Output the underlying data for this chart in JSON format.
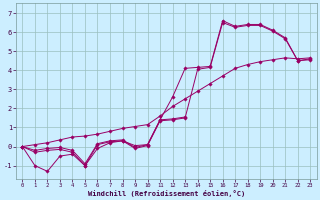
{
  "xlabel": "Windchill (Refroidissement éolien,°C)",
  "bg_color": "#cceeff",
  "grid_color": "#9bbfbf",
  "line_color": "#990066",
  "series": [
    [
      0.0,
      -1.0,
      -1.3,
      -0.5,
      -0.4,
      -1.0,
      -0.1,
      0.2,
      0.3,
      0.05,
      0.1,
      1.4,
      2.6,
      4.1,
      4.15,
      4.2,
      6.6,
      6.3,
      6.4,
      6.4,
      6.1,
      5.7,
      4.5,
      4.6
    ],
    [
      0.0,
      -0.3,
      -0.2,
      -0.15,
      -0.3,
      -1.0,
      0.1,
      0.25,
      0.3,
      -0.1,
      0.05,
      1.35,
      1.4,
      1.5,
      4.05,
      4.15,
      6.5,
      6.25,
      6.35,
      6.35,
      6.05,
      5.65,
      4.5,
      4.55
    ],
    [
      0.0,
      -0.2,
      -0.1,
      -0.05,
      -0.2,
      -0.9,
      0.15,
      0.3,
      0.35,
      -0.05,
      0.1,
      1.4,
      1.45,
      1.55,
      null,
      null,
      null,
      null,
      null,
      null,
      null,
      null,
      null,
      null
    ],
    [
      0.0,
      0.1,
      0.2,
      0.35,
      0.5,
      0.55,
      0.65,
      0.8,
      0.95,
      1.05,
      1.15,
      1.6,
      2.1,
      2.5,
      2.9,
      3.3,
      3.7,
      4.1,
      4.3,
      4.45,
      4.55,
      4.65,
      4.6,
      4.65
    ]
  ],
  "xlim": [
    -0.5,
    23.5
  ],
  "ylim": [
    -1.7,
    7.5
  ],
  "xticks": [
    0,
    1,
    2,
    3,
    4,
    5,
    6,
    7,
    8,
    9,
    10,
    11,
    12,
    13,
    14,
    15,
    16,
    17,
    18,
    19,
    20,
    21,
    22,
    23
  ],
  "yticks": [
    -1,
    0,
    1,
    2,
    3,
    4,
    5,
    6,
    7
  ]
}
